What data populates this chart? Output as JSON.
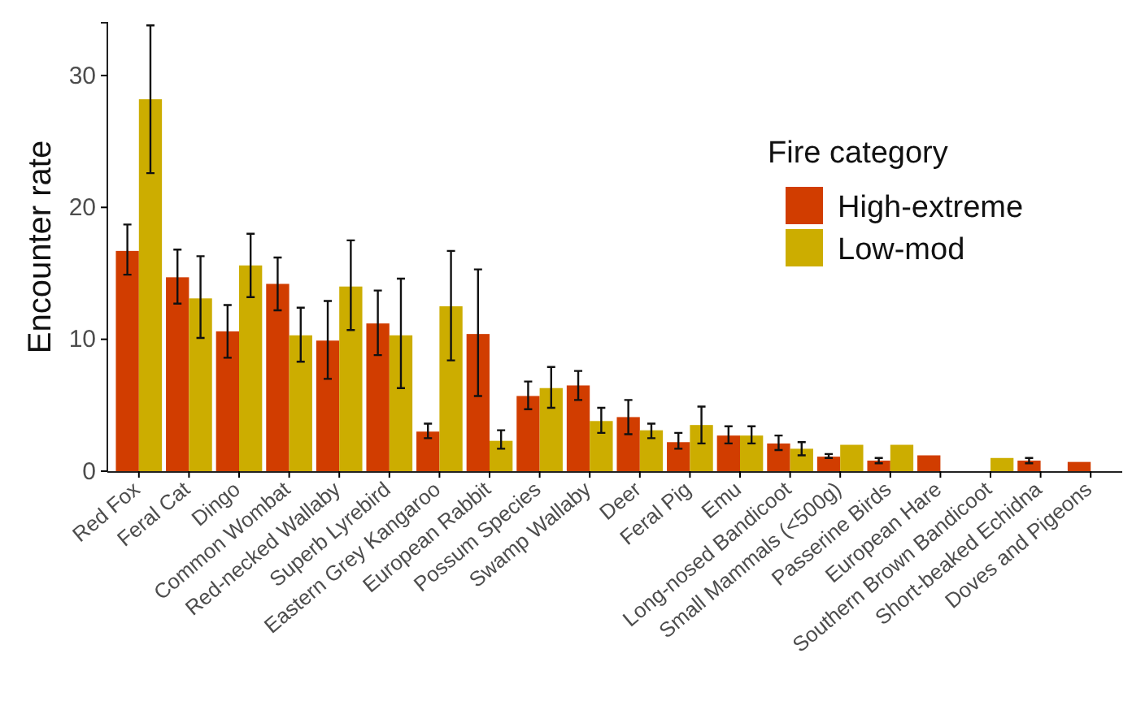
{
  "chart_data": {
    "type": "bar",
    "ylabel": "Encounter rate",
    "legend_title": "Fire category",
    "legend": "top right",
    "grid": false,
    "categories": [
      "Red Fox",
      "Feral Cat",
      "Dingo",
      "Common Wombat",
      "Red-necked Wallaby",
      "Superb Lyrebird",
      "Eastern Grey Kangaroo",
      "European Rabbit",
      "Possum Species",
      "Swamp Wallaby",
      "Deer",
      "Feral Pig",
      "Emu",
      "Long-nosed Bandicoot",
      "Small Mammals (<500g)",
      "Passerine Birds",
      "European Hare",
      "Southern Brown Bandicoot",
      "Short-beaked Echidna",
      "Doves and Pigeons"
    ],
    "series": [
      {
        "name": "High-extreme",
        "color": "#d13d00",
        "values": [
          16.7,
          14.7,
          10.6,
          14.2,
          9.9,
          11.2,
          3.0,
          10.4,
          5.7,
          6.5,
          4.1,
          2.2,
          2.7,
          2.1,
          1.1,
          0.8,
          1.2,
          null,
          0.8,
          0.7
        ],
        "errors": [
          [
            14.9,
            18.7
          ],
          [
            12.7,
            16.8
          ],
          [
            8.6,
            12.6
          ],
          [
            12.2,
            16.2
          ],
          [
            7.0,
            12.9
          ],
          [
            8.8,
            13.7
          ],
          [
            2.5,
            3.6
          ],
          [
            5.7,
            15.3
          ],
          [
            4.7,
            6.8
          ],
          [
            5.4,
            7.6
          ],
          [
            2.8,
            5.4
          ],
          [
            1.7,
            2.9
          ],
          [
            2.1,
            3.4
          ],
          [
            1.6,
            2.7
          ],
          [
            1.0,
            1.3
          ],
          [
            0.6,
            1.0
          ],
          null,
          null,
          [
            0.6,
            1.0
          ],
          null
        ]
      },
      {
        "name": "Low-mod",
        "color": "#ccad00",
        "values": [
          28.2,
          13.1,
          15.6,
          10.3,
          14.0,
          10.3,
          12.5,
          2.3,
          6.3,
          3.8,
          3.1,
          3.5,
          2.7,
          1.7,
          2.0,
          2.0,
          null,
          1.0,
          null,
          null
        ],
        "errors": [
          [
            22.6,
            33.8
          ],
          [
            10.1,
            16.3
          ],
          [
            13.2,
            18.0
          ],
          [
            8.3,
            12.4
          ],
          [
            10.7,
            17.5
          ],
          [
            6.3,
            14.6
          ],
          [
            8.4,
            16.7
          ],
          [
            1.7,
            3.1
          ],
          [
            4.8,
            7.9
          ],
          [
            2.9,
            4.8
          ],
          [
            2.5,
            3.6
          ],
          [
            2.1,
            4.9
          ],
          [
            2.1,
            3.4
          ],
          [
            1.2,
            2.2
          ],
          null,
          null,
          null,
          null,
          null,
          null
        ]
      }
    ],
    "ylim": [
      0,
      34
    ],
    "yticks": [
      0,
      10,
      20,
      30
    ]
  }
}
